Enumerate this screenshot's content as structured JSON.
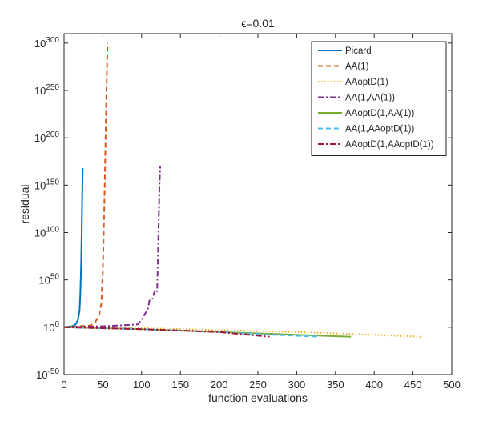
{
  "chart_data": {
    "type": "line",
    "title": "ϵ=0.01",
    "xlabel": "function evaluations",
    "ylabel": "residual",
    "xlim": [
      0,
      500
    ],
    "ylim_exponent": [
      -50,
      310
    ],
    "y_scale": "log",
    "grid": false,
    "legend_position": "top-right",
    "x_ticks": [
      0,
      50,
      100,
      150,
      200,
      250,
      300,
      350,
      400,
      450,
      500
    ],
    "y_tick_exponents": [
      -50,
      0,
      50,
      100,
      150,
      200,
      250,
      300
    ],
    "y_tick_base": "10",
    "series": [
      {
        "name": "Picard",
        "color": "#0072BD",
        "dash": "solid",
        "x": [
          0,
          10,
          15,
          18,
          20,
          21,
          22,
          23,
          24
        ],
        "y_exp": [
          0,
          1,
          3,
          8,
          18,
          35,
          65,
          115,
          168
        ]
      },
      {
        "name": "AA(1)",
        "color": "#D95319",
        "dash": "dashed",
        "x": [
          0,
          20,
          35,
          40,
          45,
          48,
          50,
          52,
          54,
          56
        ],
        "y_exp": [
          0,
          1,
          2,
          5,
          12,
          25,
          60,
          130,
          220,
          300
        ]
      },
      {
        "name": "AAoptD(1)",
        "color": "#EDB120",
        "dash": "dotted",
        "x": [
          0,
          100,
          200,
          300,
          400,
          460
        ],
        "y_exp": [
          0,
          -1,
          -3,
          -5,
          -8,
          -10
        ]
      },
      {
        "name": "AA(1,AA(1))",
        "color": "#7E2F8E",
        "dash": "dashdot",
        "x": [
          0,
          50,
          95,
          100,
          105,
          108,
          110,
          112,
          114,
          116,
          118,
          120,
          121,
          122,
          123,
          124
        ],
        "y_exp": [
          0,
          1,
          3,
          8,
          15,
          18,
          28,
          30,
          30,
          36,
          40,
          38,
          70,
          110,
          150,
          170
        ]
      },
      {
        "name": "AAoptD(1,AA(1))",
        "color": "#77AC30",
        "dash": "solid",
        "x": [
          0,
          100,
          200,
          300,
          370
        ],
        "y_exp": [
          0,
          -2,
          -5,
          -8,
          -10
        ]
      },
      {
        "name": "AA(1,AAoptD(1))",
        "color": "#4DBEEE",
        "dash": "dashed",
        "x": [
          0,
          100,
          200,
          270,
          330
        ],
        "y_exp": [
          0,
          -2,
          -5,
          -8,
          -10
        ]
      },
      {
        "name": "AAoptD(1,AAoptD(1))",
        "color": "#A2142F",
        "dash": "dashdot",
        "x": [
          0,
          100,
          200,
          265
        ],
        "y_exp": [
          0,
          -2,
          -5,
          -10
        ]
      }
    ]
  }
}
